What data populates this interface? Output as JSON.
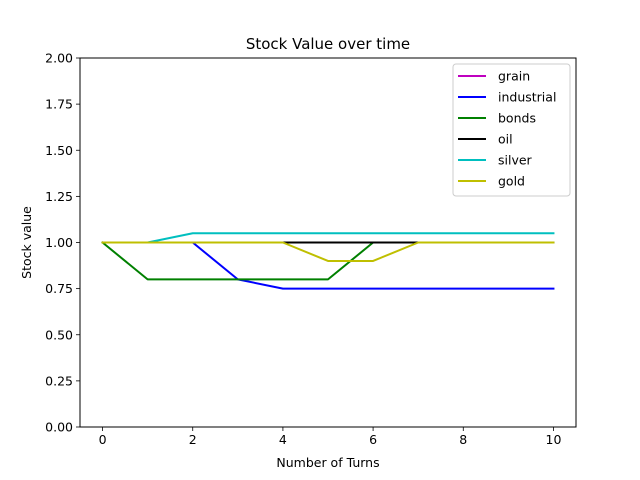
{
  "chart_data": {
    "type": "line",
    "title": "Stock Value over time",
    "xlabel": "Number of Turns",
    "ylabel": "Stock value",
    "xlim": [
      -0.5,
      10.5
    ],
    "ylim": [
      0.0,
      2.0
    ],
    "xticks": [
      0,
      2,
      4,
      6,
      8,
      10
    ],
    "yticks": [
      0.0,
      0.25,
      0.5,
      0.75,
      1.0,
      1.25,
      1.5,
      1.75,
      2.0
    ],
    "xtick_labels": [
      "0",
      "2",
      "4",
      "6",
      "8",
      "10"
    ],
    "ytick_labels": [
      "0.00",
      "0.25",
      "0.50",
      "0.75",
      "1.00",
      "1.25",
      "1.50",
      "1.75",
      "2.00"
    ],
    "x": [
      0,
      1,
      2,
      3,
      4,
      5,
      6,
      7,
      8,
      9,
      10
    ],
    "grid": false,
    "legend_position": "top-right",
    "series": [
      {
        "name": "grain",
        "color": "#bf00bf",
        "values": [
          1.0,
          1.0,
          1.0,
          1.0,
          1.0,
          1.0,
          1.0,
          1.0,
          1.0,
          1.0,
          1.0
        ]
      },
      {
        "name": "industrial",
        "color": "#0000ff",
        "values": [
          1.0,
          1.0,
          1.0,
          0.8,
          0.75,
          0.75,
          0.75,
          0.75,
          0.75,
          0.75,
          0.75
        ]
      },
      {
        "name": "bonds",
        "color": "#008000",
        "values": [
          1.0,
          0.8,
          0.8,
          0.8,
          0.8,
          0.8,
          1.0,
          1.0,
          1.0,
          1.0,
          1.0
        ]
      },
      {
        "name": "oil",
        "color": "#000000",
        "values": [
          1.0,
          1.0,
          1.0,
          1.0,
          1.0,
          1.0,
          1.0,
          1.0,
          1.0,
          1.0,
          1.0
        ]
      },
      {
        "name": "silver",
        "color": "#00bfbf",
        "values": [
          1.0,
          1.0,
          1.05,
          1.05,
          1.05,
          1.05,
          1.05,
          1.05,
          1.05,
          1.05,
          1.05
        ]
      },
      {
        "name": "gold",
        "color": "#bfbf00",
        "values": [
          1.0,
          1.0,
          1.0,
          1.0,
          1.0,
          0.9,
          0.9,
          1.0,
          1.0,
          1.0,
          1.0
        ]
      }
    ]
  }
}
